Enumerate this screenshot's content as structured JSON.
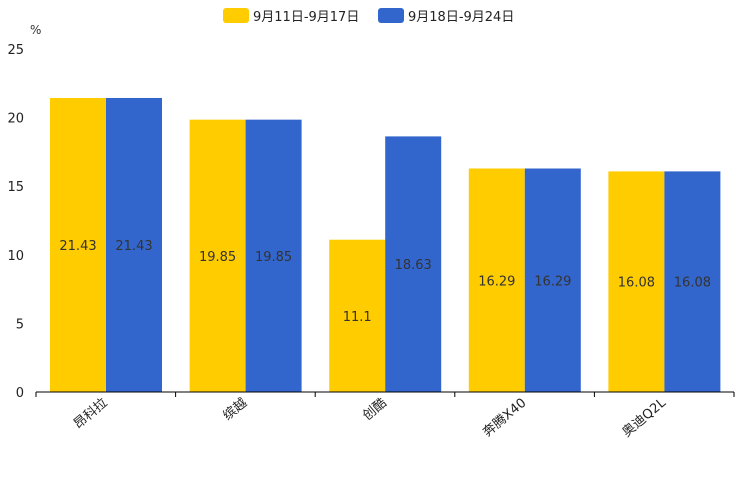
{
  "chart_data": {
    "type": "bar",
    "title": "",
    "xlabel": "",
    "ylabel": "%",
    "ylim": [
      0,
      25
    ],
    "yticks": [
      0,
      5,
      10,
      15,
      20,
      25
    ],
    "grid": false,
    "legend_position": "top-center",
    "categories": [
      "昂科拉",
      "缤越",
      "创酷",
      "奔腾X40",
      "奥迪Q2L"
    ],
    "series": [
      {
        "name": "9月11日-9月17日",
        "color": "#FFCC00",
        "values": [
          21.43,
          19.85,
          11.1,
          16.29,
          16.08
        ],
        "labels": [
          "21.43",
          "19.85",
          "11.1",
          "16.29",
          "16.08"
        ]
      },
      {
        "name": "9月18日-9月24日",
        "color": "#3366CC",
        "values": [
          21.43,
          19.85,
          18.63,
          16.29,
          16.08
        ],
        "labels": [
          "21.43",
          "19.85",
          "18.63",
          "16.29",
          "16.08"
        ]
      }
    ]
  }
}
